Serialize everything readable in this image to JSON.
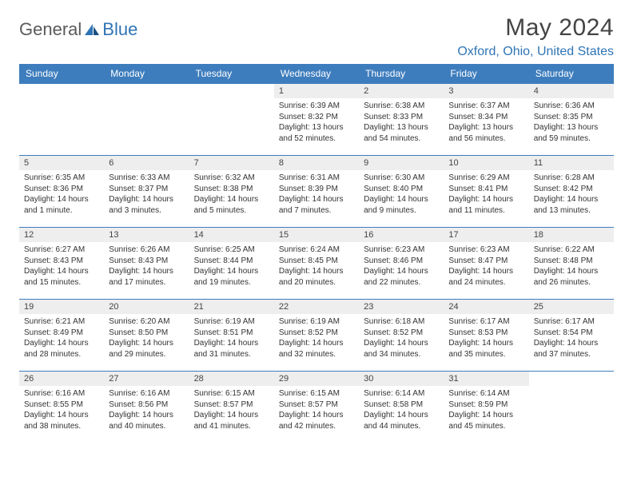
{
  "logo": {
    "general": "General",
    "blue": "Blue"
  },
  "title": "May 2024",
  "location": "Oxford, Ohio, United States",
  "colors": {
    "header_bg": "#3e7dbd",
    "header_text": "#ffffff",
    "daynum_bg": "#eeeeee",
    "border": "#3e7dbd",
    "brand_blue": "#2f74b5",
    "brand_gray": "#5a5a5a"
  },
  "weekdays": [
    "Sunday",
    "Monday",
    "Tuesday",
    "Wednesday",
    "Thursday",
    "Friday",
    "Saturday"
  ],
  "weeks": [
    [
      {
        "empty": true
      },
      {
        "empty": true
      },
      {
        "empty": true
      },
      {
        "day": "1",
        "sunrise": "Sunrise: 6:39 AM",
        "sunset": "Sunset: 8:32 PM",
        "daylight": "Daylight: 13 hours and 52 minutes."
      },
      {
        "day": "2",
        "sunrise": "Sunrise: 6:38 AM",
        "sunset": "Sunset: 8:33 PM",
        "daylight": "Daylight: 13 hours and 54 minutes."
      },
      {
        "day": "3",
        "sunrise": "Sunrise: 6:37 AM",
        "sunset": "Sunset: 8:34 PM",
        "daylight": "Daylight: 13 hours and 56 minutes."
      },
      {
        "day": "4",
        "sunrise": "Sunrise: 6:36 AM",
        "sunset": "Sunset: 8:35 PM",
        "daylight": "Daylight: 13 hours and 59 minutes."
      }
    ],
    [
      {
        "day": "5",
        "sunrise": "Sunrise: 6:35 AM",
        "sunset": "Sunset: 8:36 PM",
        "daylight": "Daylight: 14 hours and 1 minute."
      },
      {
        "day": "6",
        "sunrise": "Sunrise: 6:33 AM",
        "sunset": "Sunset: 8:37 PM",
        "daylight": "Daylight: 14 hours and 3 minutes."
      },
      {
        "day": "7",
        "sunrise": "Sunrise: 6:32 AM",
        "sunset": "Sunset: 8:38 PM",
        "daylight": "Daylight: 14 hours and 5 minutes."
      },
      {
        "day": "8",
        "sunrise": "Sunrise: 6:31 AM",
        "sunset": "Sunset: 8:39 PM",
        "daylight": "Daylight: 14 hours and 7 minutes."
      },
      {
        "day": "9",
        "sunrise": "Sunrise: 6:30 AM",
        "sunset": "Sunset: 8:40 PM",
        "daylight": "Daylight: 14 hours and 9 minutes."
      },
      {
        "day": "10",
        "sunrise": "Sunrise: 6:29 AM",
        "sunset": "Sunset: 8:41 PM",
        "daylight": "Daylight: 14 hours and 11 minutes."
      },
      {
        "day": "11",
        "sunrise": "Sunrise: 6:28 AM",
        "sunset": "Sunset: 8:42 PM",
        "daylight": "Daylight: 14 hours and 13 minutes."
      }
    ],
    [
      {
        "day": "12",
        "sunrise": "Sunrise: 6:27 AM",
        "sunset": "Sunset: 8:43 PM",
        "daylight": "Daylight: 14 hours and 15 minutes."
      },
      {
        "day": "13",
        "sunrise": "Sunrise: 6:26 AM",
        "sunset": "Sunset: 8:43 PM",
        "daylight": "Daylight: 14 hours and 17 minutes."
      },
      {
        "day": "14",
        "sunrise": "Sunrise: 6:25 AM",
        "sunset": "Sunset: 8:44 PM",
        "daylight": "Daylight: 14 hours and 19 minutes."
      },
      {
        "day": "15",
        "sunrise": "Sunrise: 6:24 AM",
        "sunset": "Sunset: 8:45 PM",
        "daylight": "Daylight: 14 hours and 20 minutes."
      },
      {
        "day": "16",
        "sunrise": "Sunrise: 6:23 AM",
        "sunset": "Sunset: 8:46 PM",
        "daylight": "Daylight: 14 hours and 22 minutes."
      },
      {
        "day": "17",
        "sunrise": "Sunrise: 6:23 AM",
        "sunset": "Sunset: 8:47 PM",
        "daylight": "Daylight: 14 hours and 24 minutes."
      },
      {
        "day": "18",
        "sunrise": "Sunrise: 6:22 AM",
        "sunset": "Sunset: 8:48 PM",
        "daylight": "Daylight: 14 hours and 26 minutes."
      }
    ],
    [
      {
        "day": "19",
        "sunrise": "Sunrise: 6:21 AM",
        "sunset": "Sunset: 8:49 PM",
        "daylight": "Daylight: 14 hours and 28 minutes."
      },
      {
        "day": "20",
        "sunrise": "Sunrise: 6:20 AM",
        "sunset": "Sunset: 8:50 PM",
        "daylight": "Daylight: 14 hours and 29 minutes."
      },
      {
        "day": "21",
        "sunrise": "Sunrise: 6:19 AM",
        "sunset": "Sunset: 8:51 PM",
        "daylight": "Daylight: 14 hours and 31 minutes."
      },
      {
        "day": "22",
        "sunrise": "Sunrise: 6:19 AM",
        "sunset": "Sunset: 8:52 PM",
        "daylight": "Daylight: 14 hours and 32 minutes."
      },
      {
        "day": "23",
        "sunrise": "Sunrise: 6:18 AM",
        "sunset": "Sunset: 8:52 PM",
        "daylight": "Daylight: 14 hours and 34 minutes."
      },
      {
        "day": "24",
        "sunrise": "Sunrise: 6:17 AM",
        "sunset": "Sunset: 8:53 PM",
        "daylight": "Daylight: 14 hours and 35 minutes."
      },
      {
        "day": "25",
        "sunrise": "Sunrise: 6:17 AM",
        "sunset": "Sunset: 8:54 PM",
        "daylight": "Daylight: 14 hours and 37 minutes."
      }
    ],
    [
      {
        "day": "26",
        "sunrise": "Sunrise: 6:16 AM",
        "sunset": "Sunset: 8:55 PM",
        "daylight": "Daylight: 14 hours and 38 minutes."
      },
      {
        "day": "27",
        "sunrise": "Sunrise: 6:16 AM",
        "sunset": "Sunset: 8:56 PM",
        "daylight": "Daylight: 14 hours and 40 minutes."
      },
      {
        "day": "28",
        "sunrise": "Sunrise: 6:15 AM",
        "sunset": "Sunset: 8:57 PM",
        "daylight": "Daylight: 14 hours and 41 minutes."
      },
      {
        "day": "29",
        "sunrise": "Sunrise: 6:15 AM",
        "sunset": "Sunset: 8:57 PM",
        "daylight": "Daylight: 14 hours and 42 minutes."
      },
      {
        "day": "30",
        "sunrise": "Sunrise: 6:14 AM",
        "sunset": "Sunset: 8:58 PM",
        "daylight": "Daylight: 14 hours and 44 minutes."
      },
      {
        "day": "31",
        "sunrise": "Sunrise: 6:14 AM",
        "sunset": "Sunset: 8:59 PM",
        "daylight": "Daylight: 14 hours and 45 minutes."
      },
      {
        "empty": true
      }
    ]
  ]
}
